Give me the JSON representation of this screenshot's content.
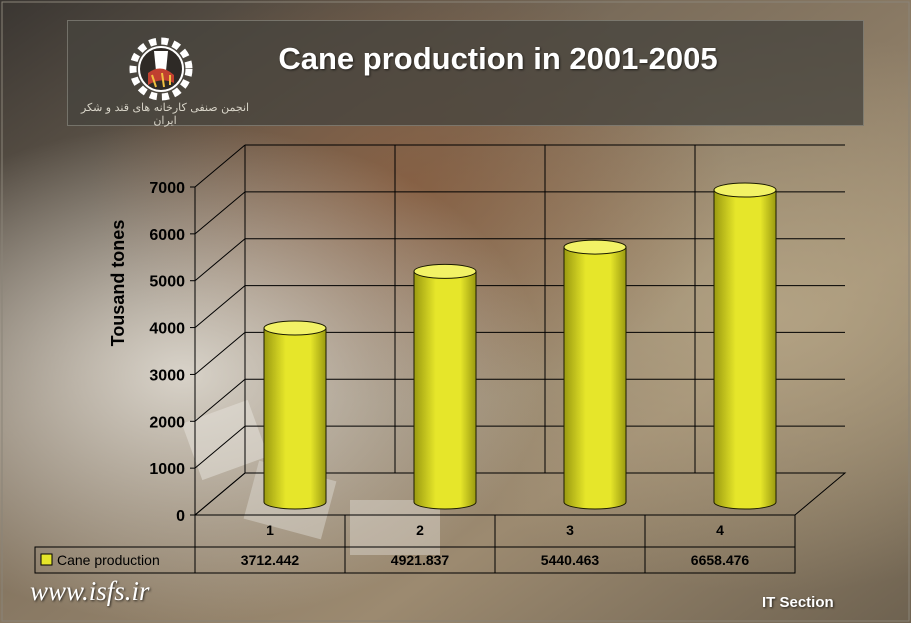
{
  "header": {
    "logo_caption": "انجمن صنفی کارخانه های قند و شکر ایران"
  },
  "footer": {
    "site_url": "www.isfs.ir",
    "section_label": "IT Section"
  },
  "colors": {
    "bar_fill": "#e6e62a",
    "bar_dark": "#9a9a10",
    "bar_top": "#f2f266",
    "text": "#000000"
  },
  "chart_data": {
    "type": "bar",
    "title": "Cane production in 2001-2005",
    "xlabel": "",
    "ylabel": "Tousand tones",
    "categories": [
      "1",
      "2",
      "3",
      "4"
    ],
    "series": [
      {
        "name": "Cane production",
        "values": [
          3712.442,
          4921.837,
          5440.463,
          6658.476
        ]
      }
    ],
    "value_labels": [
      "3712.442",
      "4921.837",
      "5440.463",
      "6658.476"
    ],
    "ylim": [
      0,
      7000
    ],
    "yticks": [
      0,
      1000,
      2000,
      3000,
      4000,
      5000,
      6000,
      7000
    ],
    "grid": true,
    "legend": "data-table"
  }
}
